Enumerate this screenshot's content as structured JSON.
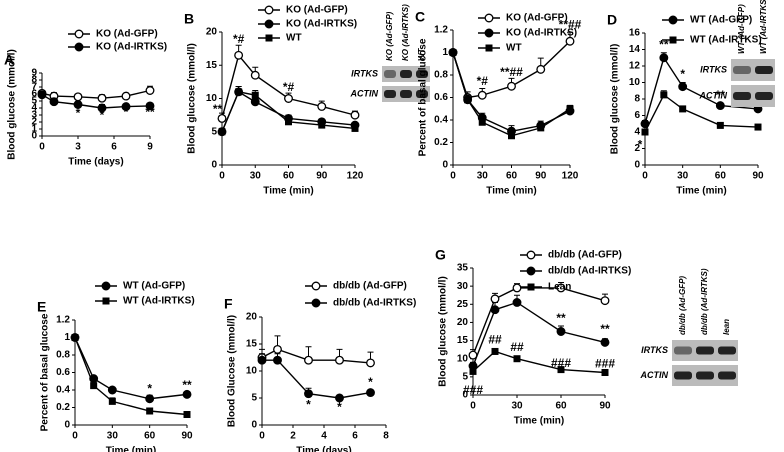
{
  "chart_data": [
    {
      "type": "line",
      "panel": "A",
      "ylabel": "Blood glucose (mmol/l)",
      "xlabel": "Time (days)",
      "x": [
        0,
        1,
        3,
        5,
        7,
        9
      ],
      "xlim": [
        0,
        9
      ],
      "xticks": [
        0,
        3,
        6,
        9
      ],
      "ylim": [
        0,
        9
      ],
      "yticks": [
        0,
        1,
        2,
        3,
        4,
        5,
        6,
        7,
        8,
        9
      ],
      "series": [
        {
          "name": "KO (Ad-GFP)",
          "marker": "circle-open",
          "color": "#000000",
          "values": [
            6.1,
            5.7,
            5.6,
            5.4,
            5.7,
            6.5
          ],
          "errors": [
            0.4,
            0.5,
            0.4,
            0.5,
            0.4,
            0.6
          ]
        },
        {
          "name": "KO (Ad-IRTKS)",
          "marker": "circle",
          "color": "#000000",
          "values": [
            5.9,
            4.9,
            4.5,
            4.0,
            4.2,
            4.3
          ],
          "errors": [
            0.3,
            0.5,
            0.4,
            0.5,
            0.3,
            0.3
          ]
        }
      ],
      "annotations": [
        "*",
        "*",
        "*",
        "**"
      ]
    },
    {
      "type": "line",
      "panel": "B",
      "ylabel": "Blood glucose (mmol/l)",
      "xlabel": "Time (min)",
      "x": [
        0,
        15,
        30,
        60,
        90,
        120
      ],
      "xlim": [
        0,
        120
      ],
      "xticks": [
        0,
        30,
        60,
        90,
        120
      ],
      "ylim": [
        0,
        20
      ],
      "yticks": [
        0,
        5,
        10,
        15,
        20
      ],
      "series": [
        {
          "name": "KO (Ad-GFP)",
          "marker": "circle-open",
          "color": "#000000",
          "values": [
            7,
            16.5,
            13.5,
            10,
            8.8,
            7.5
          ],
          "errors": [
            0.8,
            1.5,
            1.2,
            0.8,
            0.8,
            0.6
          ]
        },
        {
          "name": "KO (Ad-IRTKS)",
          "marker": "circle",
          "color": "#000000",
          "values": [
            5,
            11,
            9.5,
            7,
            6.5,
            6
          ],
          "errors": [
            0.5,
            0.8,
            0.7,
            0.5,
            0.4,
            0.4
          ]
        },
        {
          "name": "WT",
          "marker": "square",
          "color": "#000000",
          "values": [
            5,
            11,
            10.5,
            6.5,
            6,
            5.5
          ],
          "errors": [
            0.4,
            0.8,
            0.7,
            0.5,
            0.4,
            0.4
          ]
        }
      ],
      "annotations": [
        "**",
        "*#",
        "*#"
      ],
      "blot": {
        "lanes": [
          "KO (Ad-GFP)",
          "KO (Ad-IRTKS)",
          "WT"
        ],
        "rows": [
          "IRTKS",
          "ACTIN"
        ]
      }
    },
    {
      "type": "line",
      "panel": "C",
      "ylabel": "Percent of basal glucose",
      "xlabel": "Time (min)",
      "x": [
        0,
        15,
        30,
        60,
        90,
        120
      ],
      "xlim": [
        0,
        120
      ],
      "xticks": [
        0,
        30,
        60,
        90,
        120
      ],
      "ylim": [
        0,
        1.2
      ],
      "yticks": [
        0,
        0.2,
        0.4,
        0.6,
        0.8,
        1,
        1.2
      ],
      "series": [
        {
          "name": "KO (Ad-GFP)",
          "marker": "circle-open",
          "color": "#000000",
          "values": [
            1,
            0.6,
            0.62,
            0.7,
            0.85,
            1.1
          ],
          "errors": [
            0,
            0.05,
            0.06,
            0.07,
            0.1,
            0.08
          ]
        },
        {
          "name": "KO (Ad-IRTKS)",
          "marker": "circle",
          "color": "#000000",
          "values": [
            1,
            0.58,
            0.42,
            0.3,
            0.35,
            0.48
          ],
          "errors": [
            0,
            0.04,
            0.04,
            0.05,
            0.04,
            0.04
          ]
        },
        {
          "name": "WT",
          "marker": "square",
          "color": "#000000",
          "values": [
            1,
            0.58,
            0.38,
            0.26,
            0.33,
            0.5
          ],
          "errors": [
            0,
            0.04,
            0.04,
            0.03,
            0.03,
            0.03
          ]
        }
      ],
      "annotations": [
        "*#",
        "**##",
        "**##"
      ]
    },
    {
      "type": "line",
      "panel": "D",
      "ylabel": "Blood glucose (mmol/l)",
      "xlabel": "Time (min)",
      "x": [
        0,
        15,
        30,
        60,
        90
      ],
      "xlim": [
        0,
        90
      ],
      "xticks": [
        0,
        30,
        60,
        90
      ],
      "ylim": [
        0,
        16
      ],
      "yticks": [
        0,
        2,
        4,
        6,
        8,
        10,
        12,
        14,
        16
      ],
      "series": [
        {
          "name": "WT (Ad-GFP)",
          "marker": "circle",
          "color": "#000000",
          "values": [
            5,
            13,
            9.5,
            7.2,
            6.8
          ],
          "errors": [
            0.4,
            0.6,
            0.5,
            0.3,
            0.3
          ]
        },
        {
          "name": "WT (Ad-IRTKS)",
          "marker": "square",
          "color": "#000000",
          "values": [
            4,
            8.5,
            6.8,
            4.8,
            4.6
          ],
          "errors": [
            0.3,
            0.5,
            0.3,
            0.2,
            0.2
          ]
        }
      ],
      "annotations": [
        "*",
        "**",
        "*",
        "**",
        "**"
      ],
      "blot": {
        "lanes": [
          "WT (Ad-GFP)",
          "WT (Ad-IRTKS)"
        ],
        "rows": [
          "IRTKS",
          "ACTIN"
        ]
      }
    },
    {
      "type": "line",
      "panel": "E",
      "ylabel": "Percent of basal glucose",
      "xlabel": "Time (min)",
      "x": [
        0,
        15,
        30,
        60,
        90
      ],
      "xlim": [
        0,
        90
      ],
      "xticks": [
        0,
        30,
        60,
        90
      ],
      "ylim": [
        0,
        1.2
      ],
      "yticks": [
        0,
        0.2,
        0.4,
        0.6,
        0.8,
        1,
        1.2
      ],
      "series": [
        {
          "name": "WT (Ad-GFP)",
          "marker": "circle",
          "color": "#000000",
          "values": [
            1,
            0.53,
            0.4,
            0.3,
            0.35
          ],
          "errors": [
            0,
            0.02,
            0.02,
            0.04,
            0.03
          ]
        },
        {
          "name": "WT (Ad-IRTKS)",
          "marker": "square",
          "color": "#000000",
          "values": [
            1,
            0.45,
            0.27,
            0.16,
            0.12
          ],
          "errors": [
            0,
            0.03,
            0.04,
            0.02,
            0.01
          ]
        }
      ],
      "annotations": [
        "*",
        "**"
      ]
    },
    {
      "type": "line",
      "panel": "F",
      "ylabel": "Blood Glucose (mmol/l)",
      "xlabel": "Time (days)",
      "x": [
        0,
        1,
        3,
        5,
        7
      ],
      "xlim": [
        0,
        8
      ],
      "xticks": [
        0,
        2,
        4,
        6,
        8
      ],
      "ylim": [
        0,
        20
      ],
      "yticks": [
        0,
        5,
        10,
        15,
        20
      ],
      "series": [
        {
          "name": "db/db (Ad-GFP)",
          "marker": "circle-open",
          "color": "#000000",
          "values": [
            12.5,
            14,
            12,
            12,
            11.5
          ],
          "errors": [
            1.5,
            2.5,
            2.5,
            2,
            2
          ]
        },
        {
          "name": "db/db (Ad-IRTKS)",
          "marker": "circle",
          "color": "#000000",
          "values": [
            12,
            12,
            5.8,
            5,
            6
          ],
          "errors": [
            1.2,
            1.2,
            1,
            0.5,
            0.5
          ]
        }
      ],
      "annotations": [
        "*",
        "*",
        "*"
      ]
    },
    {
      "type": "line",
      "panel": "G",
      "ylabel": "Blood glucose (mmol/l)",
      "xlabel": "Time (min)",
      "x": [
        0,
        15,
        30,
        60,
        90
      ],
      "xlim": [
        0,
        90
      ],
      "xticks": [
        0,
        30,
        60,
        90
      ],
      "ylim": [
        0,
        35
      ],
      "yticks": [
        0,
        5,
        10,
        15,
        20,
        25,
        30,
        35
      ],
      "series": [
        {
          "name": "db/db (Ad-GFP)",
          "marker": "circle-open",
          "color": "#000000",
          "values": [
            11,
            26.5,
            29.5,
            29.5,
            26
          ],
          "errors": [
            1.5,
            1.5,
            1.2,
            1.5,
            1.8
          ]
        },
        {
          "name": "db/db (Ad-IRTKS)",
          "marker": "circle",
          "color": "#000000",
          "values": [
            8,
            23.5,
            25.5,
            17.5,
            14.5
          ],
          "errors": [
            1,
            2,
            2,
            1.5,
            1
          ]
        },
        {
          "name": "Lean",
          "marker": "square",
          "color": "#000000",
          "values": [
            6.5,
            12,
            10,
            7,
            6.2
          ],
          "errors": [
            0.5,
            0.8,
            0.6,
            0.5,
            0.4
          ]
        }
      ],
      "annotations": [
        "###",
        "##",
        "##",
        "**",
        "**",
        "###",
        "###"
      ],
      "blot": {
        "lanes": [
          "db/db (Ad-GFP)",
          "db/db (Ad-IRTKS)",
          "lean"
        ],
        "rows": [
          "IRTKS",
          "ACTIN"
        ]
      }
    }
  ]
}
